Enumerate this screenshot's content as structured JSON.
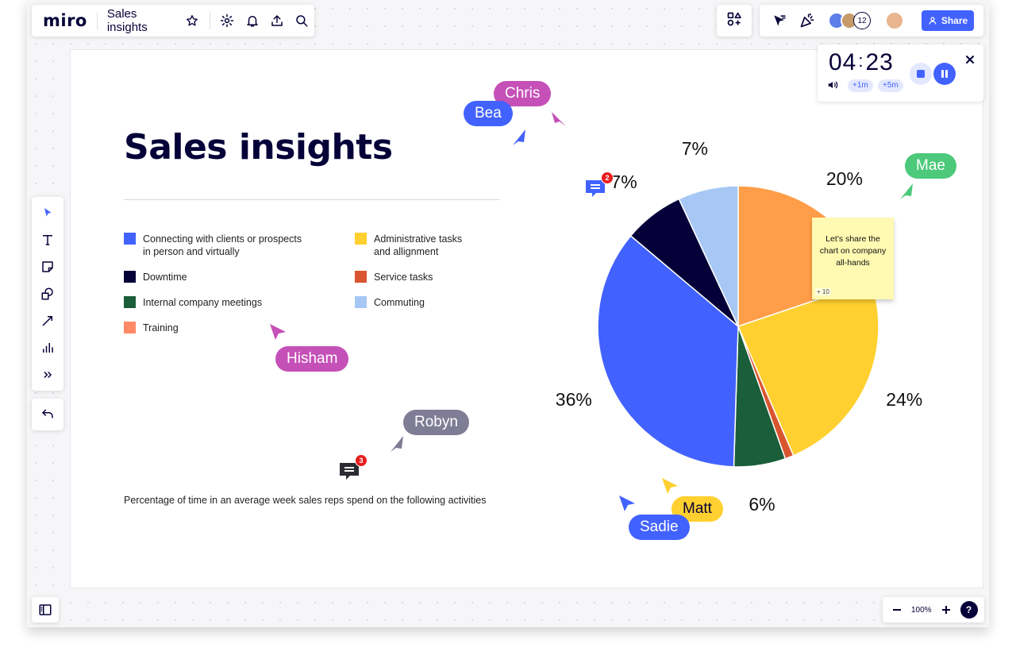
{
  "app": {
    "logo": "miro",
    "board_title": "Sales insights"
  },
  "toolbar": {
    "collaborator_count": "12",
    "share_label": "Share"
  },
  "timer": {
    "minutes": "04",
    "seconds": "23",
    "add_1m": "+1m",
    "add_5m": "+5m"
  },
  "zoom": {
    "level": "100%",
    "help": "?"
  },
  "board": {
    "heading": "Sales insights",
    "caption": "Percentage of time in an average week sales reps spend on the following activities",
    "legend": [
      {
        "label_line1": "Connecting with clients or prospects",
        "label_line2": "in person and virtually",
        "color": "#4262ff"
      },
      {
        "label_line1": "Downtime",
        "label_line2": "",
        "color": "#050038"
      },
      {
        "label_line1": "Internal company meetings",
        "label_line2": "",
        "color": "#1a5e3a"
      },
      {
        "label_line1": "Training",
        "label_line2": "",
        "color": "#ff8a65"
      },
      {
        "label_line1": "Administrative tasks",
        "label_line2": "and allignment",
        "color": "#ffd02f"
      },
      {
        "label_line1": "Service tasks",
        "label_line2": "",
        "color": "#d9552f"
      },
      {
        "label_line1": "Commuting",
        "label_line2": "",
        "color": "#a7c8f5"
      }
    ],
    "sticky": {
      "text": "Let’s share the chart on company all-hands",
      "reaction": "10"
    }
  },
  "chart_data": {
    "type": "pie",
    "slices": [
      {
        "value": 20,
        "label": "20%",
        "color": "#ff9d48"
      },
      {
        "value": 24,
        "label": "24%",
        "color": "#ffd02f"
      },
      {
        "value": 1,
        "label": "",
        "color": "#d9552f"
      },
      {
        "value": 6,
        "label": "6%",
        "color": "#1a5e3a"
      },
      {
        "value": 36,
        "label": "36%",
        "color": "#4262ff"
      },
      {
        "value": 7,
        "label": "7%",
        "color": "#050038"
      },
      {
        "value": 7,
        "label": "7%",
        "color": "#a7c8f5"
      }
    ]
  },
  "cursors": [
    {
      "name": "Chris",
      "color": "#c550b7"
    },
    {
      "name": "Bea",
      "color": "#4262ff"
    },
    {
      "name": "Mae",
      "color": "#4cc97a"
    },
    {
      "name": "Hisham",
      "color": "#c550b7"
    },
    {
      "name": "Robyn",
      "color": "#7f7d95"
    },
    {
      "name": "Matt",
      "color": "#ffd02f"
    },
    {
      "name": "Sadie",
      "color": "#4262ff"
    }
  ],
  "comments": [
    {
      "count": "2"
    },
    {
      "count": "3"
    }
  ]
}
